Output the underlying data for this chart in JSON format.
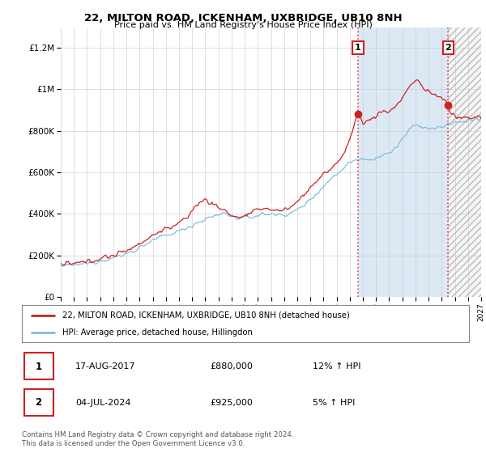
{
  "title_line1": "22, MILTON ROAD, ICKENHAM, UXBRIDGE, UB10 8NH",
  "title_line2": "Price paid vs. HM Land Registry's House Price Index (HPI)",
  "ylim": [
    0,
    1300000
  ],
  "yticks": [
    0,
    200000,
    400000,
    600000,
    800000,
    1000000,
    1200000
  ],
  "ytick_labels": [
    "£0",
    "£200K",
    "£400K",
    "£600K",
    "£800K",
    "£1M",
    "£1.2M"
  ],
  "sale1_date": "17-AUG-2017",
  "sale1_price": 880000,
  "sale1_year": 2017.625,
  "sale1_hpi_pct": "12% ↑ HPI",
  "sale2_date": "04-JUL-2024",
  "sale2_price": 925000,
  "sale2_year": 2024.5,
  "sale2_hpi_pct": "5% ↑ HPI",
  "legend_label_red": "22, MILTON ROAD, ICKENHAM, UXBRIDGE, UB10 8NH (detached house)",
  "legend_label_blue": "HPI: Average price, detached house, Hillingdon",
  "footer": "Contains HM Land Registry data © Crown copyright and database right 2024.\nThis data is licensed under the Open Government Licence v3.0.",
  "hpi_color": "#7fbfdf",
  "price_color": "#cc2222",
  "sale_marker_color": "#cc2222",
  "vline_color": "#dd4444",
  "plot_bg": "#ffffff",
  "shade_blue_color": "#dce9f5",
  "shade_hatch_color": "#e8e8e8",
  "annotation_box_color": "#cc2222",
  "xlim_start": 1995,
  "xlim_end": 2027
}
